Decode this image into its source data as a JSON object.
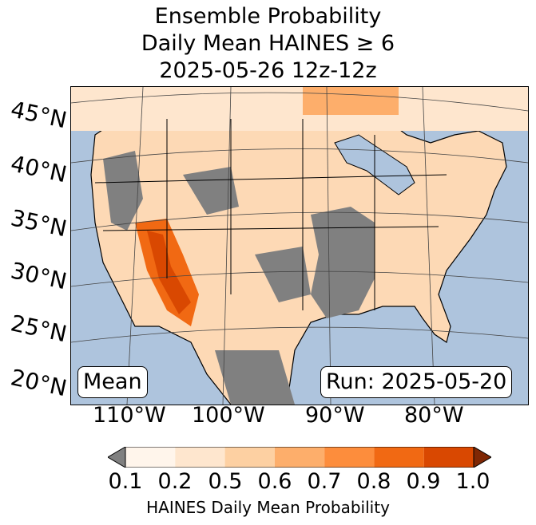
{
  "title": {
    "line1": "Ensemble Probability",
    "line2": "Daily Mean HAINES ≥ 6",
    "line3": "2025-05-26 12z-12z"
  },
  "map": {
    "region": "Continental United States",
    "lat_labels": [
      "45°N",
      "40°N",
      "35°N",
      "30°N",
      "25°N",
      "20°N"
    ],
    "lon_labels": [
      "110°W",
      "100°W",
      "90°W",
      "80°W"
    ],
    "stat_label": "Mean",
    "run_label": "Run: 2025-05-20",
    "colors": {
      "ocean": "#aec4dd",
      "missing": "#808080",
      "border": "#000000"
    }
  },
  "colorbar": {
    "label": "HAINES Daily Mean Probability",
    "ticks": [
      "0.1",
      "0.2",
      "0.5",
      "0.6",
      "0.7",
      "0.8",
      "0.9",
      "1.0"
    ],
    "under_color": "#808080",
    "over_color": "#7f2704",
    "bin_colors": [
      "#fff5eb",
      "#fee6ce",
      "#fdd0a2",
      "#fdae6b",
      "#fd8d3c",
      "#f16913",
      "#d94801"
    ]
  }
}
